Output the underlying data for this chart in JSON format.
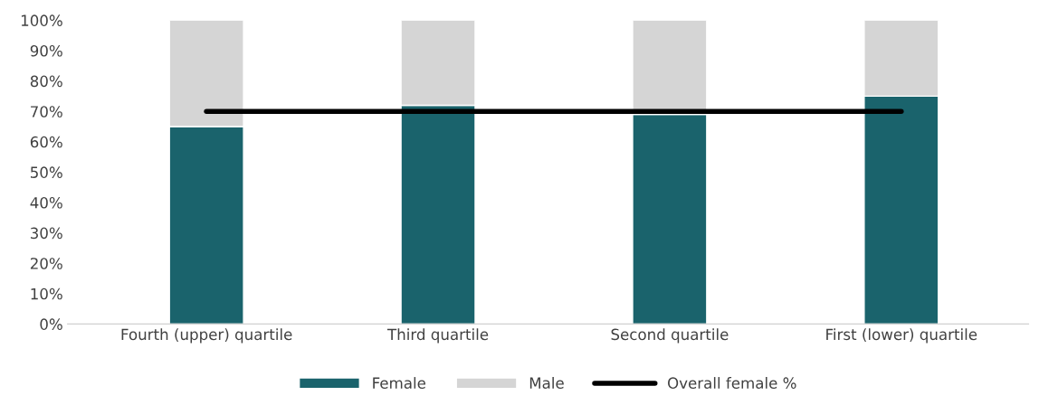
{
  "chart_data": {
    "type": "bar",
    "stacked": true,
    "categories": [
      "Fourth (upper) quartile",
      "Third quartile",
      "Second quartile",
      "First (lower) quartile"
    ],
    "series": [
      {
        "name": "Female",
        "color": "#1a636c",
        "values": [
          65,
          72,
          69,
          75
        ]
      },
      {
        "name": "Male",
        "color": "#d5d5d5",
        "values": [
          35,
          28,
          31,
          25
        ]
      },
      {
        "name": "Overall female %",
        "type": "line",
        "color": "#000000",
        "values": [
          70,
          70,
          70,
          70
        ]
      }
    ],
    "ylim": [
      0,
      100
    ],
    "yticks": [
      {
        "value": 0,
        "label": "0%"
      },
      {
        "value": 10,
        "label": "10%"
      },
      {
        "value": 20,
        "label": "20%"
      },
      {
        "value": 30,
        "label": "30%"
      },
      {
        "value": 40,
        "label": "40%"
      },
      {
        "value": 50,
        "label": "50%"
      },
      {
        "value": 60,
        "label": "60%"
      },
      {
        "value": 70,
        "label": "70%"
      },
      {
        "value": 80,
        "label": "80%"
      },
      {
        "value": 90,
        "label": "90%"
      },
      {
        "value": 100,
        "label": "100%"
      }
    ],
    "grid": false,
    "legend": "bottom"
  }
}
